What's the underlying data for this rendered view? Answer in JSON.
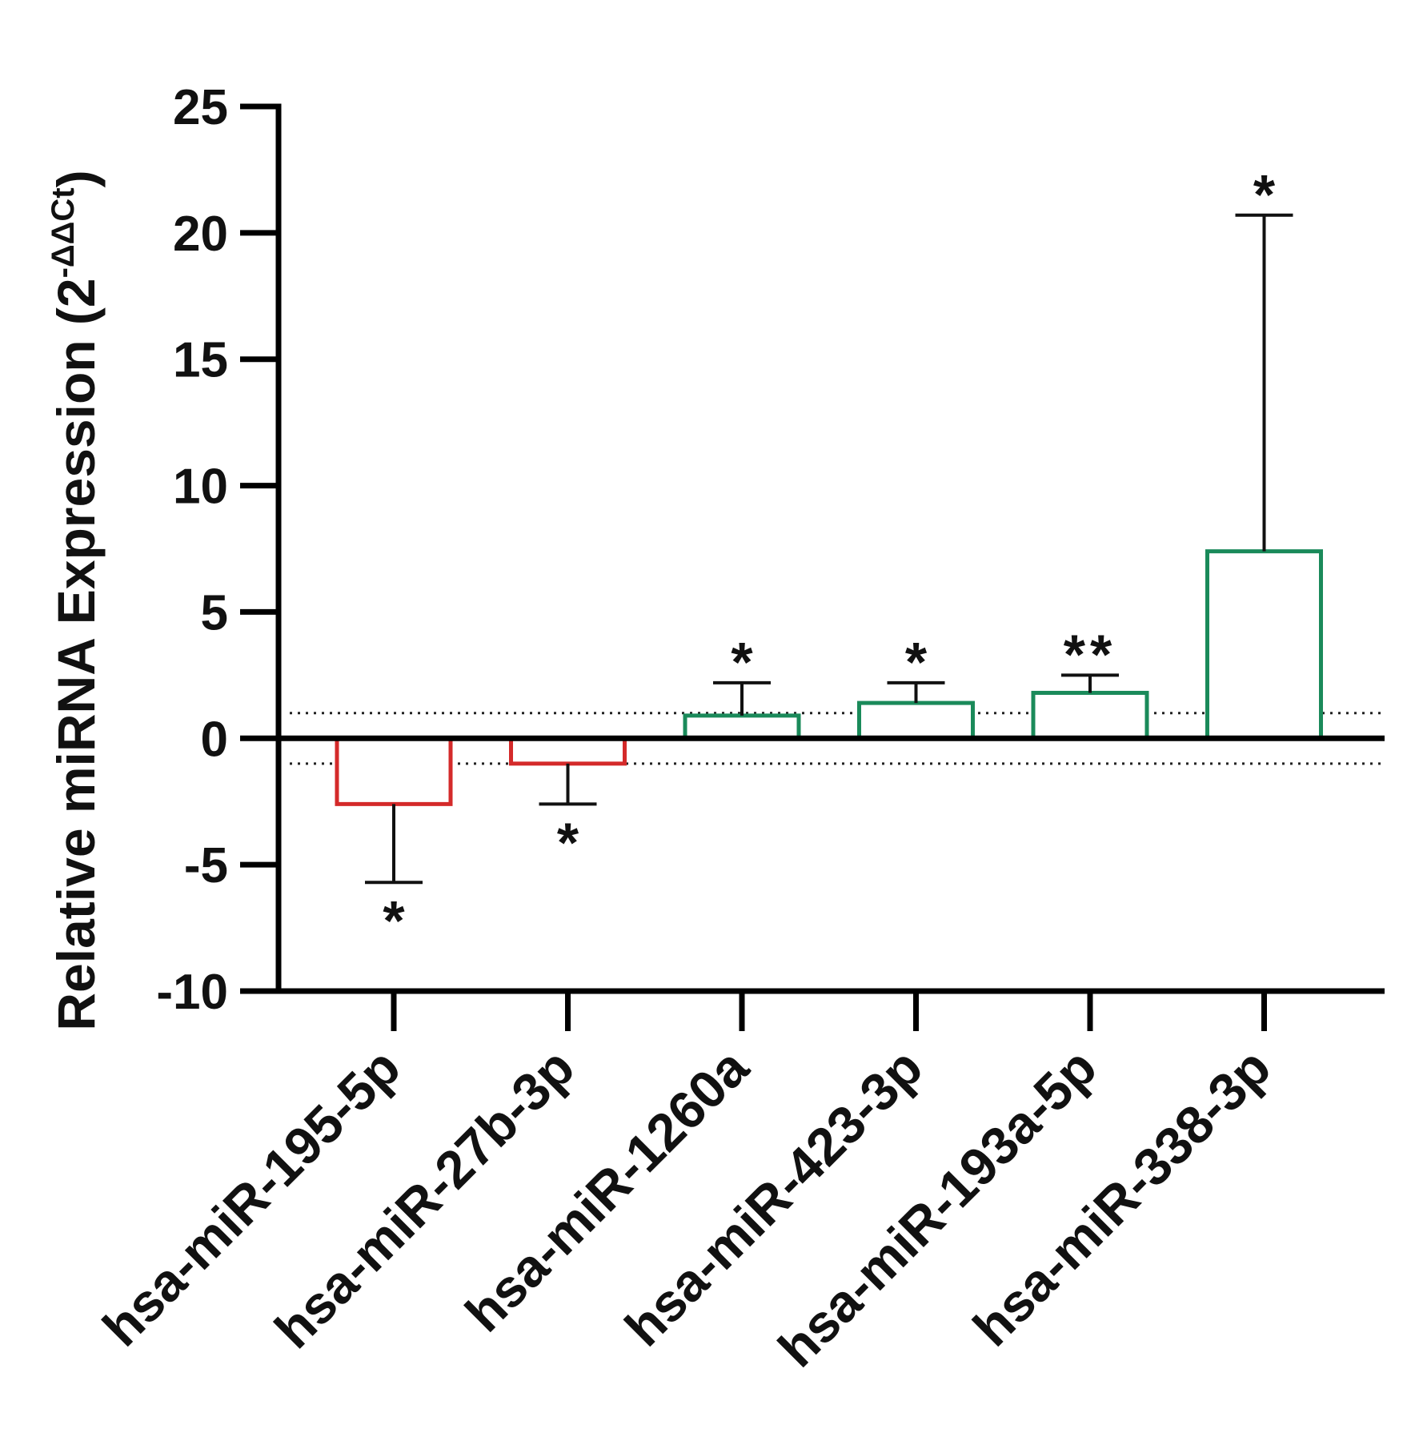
{
  "chart_data": {
    "type": "bar",
    "title": "",
    "xlabel": "",
    "ylabel": "Relative miRNA Expression (2",
    "ylabel_superscript": "-ΔΔCt",
    "ylabel_close": ")",
    "ylim": [
      -10,
      25
    ],
    "yticks": [
      -10,
      -5,
      0,
      5,
      10,
      15,
      20,
      25
    ],
    "ytick_labels": [
      "-10",
      "-5",
      "0",
      "5",
      "10",
      "15",
      "20",
      "25"
    ],
    "reference_lines": [
      1,
      -1
    ],
    "categories": [
      "hsa-miR-195-5p",
      "hsa-miR-27b-3p",
      "hsa-miR-1260a",
      "hsa-miR-423-3p",
      "hsa-miR-193a-5p",
      "hsa-miR-338-3p"
    ],
    "values": [
      -2.6,
      -1.0,
      0.9,
      1.4,
      1.8,
      7.4
    ],
    "error_bars": [
      3.1,
      1.6,
      1.3,
      0.8,
      0.7,
      13.3
    ],
    "significance": [
      "*",
      "*",
      "*",
      "*",
      "**",
      "*"
    ],
    "colors": [
      "#d42a2a",
      "#d42a2a",
      "#1a8a5a",
      "#1a8a5a",
      "#1a8a5a",
      "#1a8a5a"
    ],
    "axis_color": "#000000"
  }
}
